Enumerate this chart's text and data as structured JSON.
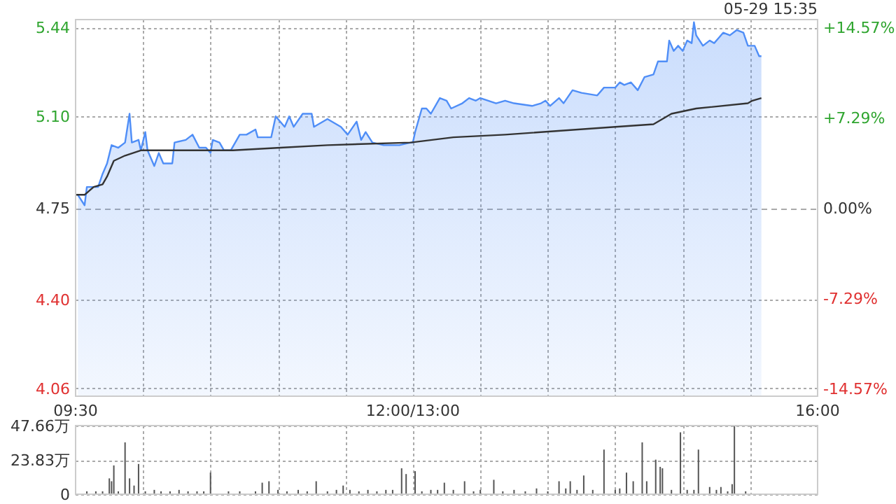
{
  "chart_data": [
    {
      "type": "area",
      "annotations": [
        "05-29 15:35"
      ],
      "categories": [
        "09:30",
        null,
        null,
        null,
        null,
        null,
        null,
        null,
        null,
        null,
        null,
        null,
        null,
        null,
        null,
        null,
        null,
        null,
        null,
        null,
        null,
        null,
        null,
        null,
        null,
        null,
        null,
        null,
        null,
        null,
        null,
        null,
        null,
        null,
        null,
        null,
        null,
        null,
        null,
        null,
        null,
        null,
        null,
        null,
        null,
        null,
        null,
        null,
        null,
        null,
        null,
        null,
        null,
        null,
        null,
        null,
        null,
        null,
        null,
        null,
        null,
        null,
        null,
        null,
        null,
        null,
        null,
        null,
        null,
        null,
        null,
        null,
        null,
        null,
        null,
        null,
        null,
        null,
        null,
        null,
        null,
        null,
        null,
        null,
        null,
        null,
        null,
        null,
        null,
        null,
        null,
        null,
        null,
        null,
        null,
        null,
        null,
        null,
        null,
        null,
        null,
        null,
        null,
        null,
        null,
        null,
        null,
        null,
        null,
        null,
        null,
        null,
        null,
        null,
        null,
        null,
        null,
        null,
        null,
        null,
        null,
        null,
        null,
        null,
        null,
        null,
        null,
        null,
        null,
        null,
        null,
        null,
        null,
        null,
        null,
        null,
        null,
        null,
        null,
        null,
        null,
        null,
        null,
        null,
        null,
        null,
        null,
        null,
        null,
        null,
        "12:00/13:00",
        null,
        null,
        null,
        null,
        null,
        null,
        null,
        null,
        null,
        null,
        null,
        null,
        null,
        null,
        null,
        null,
        null,
        null,
        null,
        null,
        null,
        null,
        null,
        null,
        null,
        null,
        null,
        null,
        null,
        null,
        null,
        null,
        null,
        null,
        null,
        null,
        null,
        null,
        null,
        null,
        null,
        null,
        null,
        null,
        null,
        null,
        null,
        null,
        null,
        null,
        null,
        null,
        null,
        null,
        null,
        null,
        null,
        null,
        null,
        null,
        null,
        null,
        null,
        null,
        null,
        null,
        null,
        null,
        null,
        null,
        null,
        null,
        null,
        null,
        null,
        null,
        null,
        null,
        null,
        null,
        null,
        null,
        null,
        null,
        null,
        null,
        null,
        null,
        null,
        null,
        null,
        null,
        null,
        null,
        null,
        null,
        null,
        null,
        null,
        null,
        null,
        null,
        null,
        null,
        null,
        null,
        null,
        null,
        null,
        null,
        null,
        null,
        null,
        null,
        null,
        null,
        null,
        null,
        null,
        null,
        null,
        null,
        null,
        null,
        null,
        null,
        null,
        null,
        null,
        null,
        null,
        null,
        null,
        null,
        null,
        null,
        null,
        null,
        null,
        null,
        null,
        null,
        null,
        null,
        null,
        null,
        null,
        null,
        null,
        null,
        null,
        null,
        null,
        null,
        null,
        null,
        null,
        null,
        null,
        null,
        null,
        null,
        null,
        null,
        null,
        null,
        null,
        null,
        null,
        null,
        null,
        null,
        null,
        null,
        null,
        null,
        null,
        null,
        null,
        "16:00"
      ],
      "ylim": [
        4.03,
        5.47
      ],
      "yticks": [
        {
          "value": 5.44,
          "label": "5.44"
        },
        {
          "value": 5.1,
          "label": "5.10"
        },
        {
          "value": 4.75,
          "label": "4.75"
        },
        {
          "value": 4.4,
          "label": "4.40"
        },
        {
          "value": 4.06,
          "label": "4.06"
        }
      ],
      "y2lim": [
        -15.2,
        15.2
      ],
      "y2ticks": [
        {
          "value": 14.57,
          "label": "+14.57%"
        },
        {
          "value": 7.29,
          "label": "+7.29%"
        },
        {
          "value": 0,
          "label": "0.00%"
        },
        {
          "value": -7.29,
          "label": "-7.29%"
        },
        {
          "value": -14.57,
          "label": "-14.57%"
        }
      ],
      "grid": true,
      "series": [
        {
          "color": "#4f8ef7",
          "values": [
            null,
            4.8,
            null,
            null,
            4.76,
            4.83,
            null,
            null,
            null,
            null,
            4.83,
            null,
            4.88,
            null,
            4.92,
            null,
            4.99,
            null,
            null,
            4.98,
            null,
            null,
            5.0,
            null,
            5.11,
            5.0,
            null,
            null,
            5.01,
            4.97,
            null,
            5.04,
            4.97,
            null,
            null,
            4.91,
            null,
            4.96,
            null,
            4.92,
            null,
            null,
            null,
            4.92,
            5.0,
            null,
            null,
            null,
            null,
            5.01,
            null,
            null,
            5.03,
            null,
            null,
            4.98,
            null,
            null,
            4.98,
            null,
            4.96,
            5.01,
            null,
            null,
            5.0,
            null,
            4.97,
            null,
            null,
            4.97,
            null,
            null,
            null,
            5.03,
            null,
            null,
            5.03,
            null,
            null,
            null,
            5.05,
            5.02,
            null,
            null,
            null,
            null,
            null,
            5.02,
            null,
            5.1,
            null,
            null,
            null,
            5.06,
            null,
            5.1,
            null,
            5.06,
            null,
            null,
            null,
            5.11,
            null,
            null,
            null,
            5.11,
            5.06,
            null,
            null,
            null,
            null,
            null,
            5.09,
            null,
            null,
            null,
            null,
            null,
            5.06,
            null,
            null,
            5.03,
            null,
            null,
            null,
            5.08,
            null,
            5.01,
            null,
            5.04,
            null,
            null,
            5.0,
            null,
            null,
            null,
            null,
            4.99,
            null,
            null,
            null,
            null,
            null,
            null,
            4.99,
            null,
            null,
            null,
            null,
            5.0,
            5.0,
            5.04,
            null,
            null,
            5.13,
            null,
            5.13,
            null,
            5.11,
            null,
            null,
            null,
            5.17,
            null,
            null,
            5.16,
            null,
            5.13,
            null,
            null,
            null,
            null,
            5.15,
            null,
            null,
            5.17,
            null,
            null,
            5.16,
            null,
            5.17,
            null,
            null,
            null,
            null,
            null,
            null,
            5.15,
            null,
            null,
            null,
            5.16,
            null,
            null,
            null,
            5.15,
            null,
            null,
            null,
            null,
            null,
            null,
            null,
            5.14,
            null,
            null,
            null,
            5.15,
            null,
            5.16,
            null,
            5.14,
            null,
            null,
            null,
            5.17,
            null,
            5.15,
            null,
            null,
            null,
            5.2,
            null,
            null,
            null,
            5.19,
            null,
            null,
            null,
            null,
            null,
            null,
            5.18,
            null,
            null,
            5.21,
            null,
            null,
            null,
            null,
            5.21,
            null,
            5.23,
            null,
            5.22,
            null,
            null,
            5.23,
            null,
            null,
            5.2,
            null,
            null,
            5.25,
            null,
            null,
            null,
            5.26,
            null,
            5.31,
            null,
            null,
            null,
            5.31,
            5.39,
            null,
            5.35,
            null,
            5.37,
            null,
            5.35,
            null,
            5.39,
            null,
            5.38,
            5.46,
            5.41,
            null,
            null,
            5.37,
            null,
            null,
            5.39,
            null,
            5.38,
            null,
            5.4,
            null,
            5.42,
            null,
            null,
            5.41,
            null,
            null,
            5.43,
            null,
            null,
            5.42,
            null,
            5.37,
            null,
            null,
            5.37,
            null,
            5.33,
            5.33,
            null,
            null,
            null,
            null,
            null,
            null,
            null,
            null,
            null,
            null,
            null,
            null,
            null,
            null,
            null,
            null,
            null,
            null,
            null,
            null,
            null,
            null,
            null,
            null,
            null
          ]
        },
        {
          "type": "line",
          "color": "#333333",
          "values": [
            4.8,
            null,
            null,
            null,
            4.8,
            null,
            null,
            null,
            4.83,
            null,
            null,
            null,
            4.84,
            null,
            4.87,
            null,
            null,
            4.93,
            null,
            null,
            null,
            null,
            4.95,
            null,
            null,
            null,
            null,
            null,
            null,
            4.97,
            null,
            null,
            null,
            null,
            null,
            null,
            null,
            null,
            null,
            null,
            null,
            null,
            null,
            4.97,
            null,
            null,
            null,
            null,
            null,
            null,
            null,
            null,
            null,
            null,
            null,
            null,
            null,
            null,
            null,
            null,
            null,
            null,
            null,
            null,
            null,
            null,
            null,
            null,
            null,
            null,
            4.97,
            null,
            null,
            null,
            null,
            null,
            null,
            null,
            null,
            null,
            null,
            null,
            null,
            null,
            null,
            null,
            null,
            null,
            null,
            null,
            null,
            4.98,
            null,
            null,
            null,
            null,
            null,
            null,
            null,
            null,
            null,
            null,
            null,
            null,
            null,
            null,
            null,
            null,
            null,
            null,
            null,
            null,
            4.99,
            null,
            null,
            null,
            null,
            null,
            null,
            null,
            null,
            null,
            null,
            null,
            null,
            null,
            null,
            null,
            null,
            null,
            null,
            null,
            null,
            null,
            null,
            null,
            null,
            null,
            null,
            null,
            null,
            null,
            null,
            null,
            null,
            null,
            null,
            null,
            null,
            5.0,
            null,
            null,
            null,
            null,
            null,
            null,
            null,
            null,
            null,
            null,
            null,
            null,
            null,
            null,
            null,
            null,
            null,
            null,
            5.02,
            null,
            null,
            null,
            null,
            null,
            null,
            null,
            null,
            null,
            null,
            null,
            null,
            null,
            null,
            null,
            null,
            null,
            null,
            null,
            null,
            null,
            null,
            5.03,
            null,
            null,
            null,
            null,
            null,
            null,
            null,
            null,
            null,
            null,
            null,
            null,
            null,
            null,
            null,
            null,
            null,
            null,
            null,
            null,
            null,
            null,
            null,
            null,
            null,
            null,
            null,
            null,
            null,
            null,
            null,
            null,
            null,
            null,
            null,
            null,
            null,
            null,
            null,
            null,
            null,
            null,
            null,
            null,
            null,
            null,
            null,
            null,
            5.06,
            null,
            null,
            null,
            null,
            null,
            null,
            null,
            null,
            null,
            null,
            null,
            null,
            null,
            null,
            null,
            null,
            5.07,
            null,
            null,
            null,
            null,
            null,
            null,
            null,
            5.11,
            null,
            null,
            null,
            null,
            null,
            null,
            null,
            null,
            null,
            null,
            5.13,
            null,
            null,
            null,
            null,
            null,
            null,
            null,
            null,
            null,
            null,
            null,
            null,
            null,
            null,
            null,
            null,
            null,
            null,
            null,
            null,
            null,
            null,
            5.15,
            null,
            5.16,
            null,
            null,
            null,
            5.17,
            null,
            null,
            null,
            null,
            null,
            null,
            null,
            null,
            null,
            null,
            null,
            null,
            null,
            null,
            null,
            null,
            null,
            null,
            null,
            null,
            null,
            null,
            null,
            null,
            null
          ]
        }
      ]
    },
    {
      "type": "bar",
      "color": "#555555",
      "tick_labels": "y",
      "grid": true,
      "categories": [
        null,
        null,
        null,
        null,
        null,
        null,
        null,
        null,
        null,
        null,
        null,
        null,
        null,
        null,
        null,
        null,
        null,
        null,
        null,
        null,
        null,
        null,
        null,
        null,
        null,
        null,
        null,
        null,
        null,
        null,
        null,
        null,
        null,
        null,
        null,
        null,
        null,
        null,
        null,
        null,
        null,
        null,
        null,
        null,
        null,
        null,
        null,
        null,
        null,
        null,
        null,
        null,
        null,
        null,
        null,
        null,
        null,
        null,
        null,
        null,
        null,
        null,
        null,
        null,
        null,
        null,
        null,
        null,
        null,
        null,
        null,
        null,
        null,
        null,
        null,
        null,
        null,
        null,
        null,
        null,
        null,
        null,
        null,
        null,
        null,
        null,
        null,
        null,
        null,
        null,
        null,
        null,
        null,
        null,
        null,
        null,
        null,
        null,
        null,
        null,
        null,
        null,
        null,
        null,
        null,
        null,
        null,
        null,
        null,
        null,
        null,
        null,
        null,
        null,
        null,
        null,
        null,
        null,
        null,
        null,
        null,
        null,
        null,
        null,
        null,
        null,
        null,
        null,
        null,
        null,
        null,
        null,
        null,
        null,
        null,
        null,
        null,
        null,
        null,
        null,
        null,
        null,
        null,
        null,
        null,
        null,
        null,
        null,
        null,
        null,
        null,
        null,
        null,
        null,
        null,
        null,
        null,
        null,
        null,
        null,
        null,
        null,
        null,
        null,
        null,
        null,
        null,
        null,
        null,
        null,
        null,
        null,
        null,
        null,
        null,
        null,
        null,
        null,
        null,
        null,
        null,
        null,
        null,
        null,
        null,
        null,
        null,
        null,
        null,
        null,
        null,
        null,
        null,
        null,
        null,
        null,
        null,
        null,
        null,
        null,
        null,
        null,
        null,
        null,
        null,
        null,
        null,
        null,
        null,
        null,
        null,
        null,
        null,
        null,
        null,
        null,
        null,
        null,
        null,
        null,
        null,
        null,
        null,
        null,
        null,
        null,
        null,
        null,
        null,
        null,
        null,
        null,
        null,
        null,
        null,
        null,
        null,
        null,
        null,
        null,
        null,
        null,
        null,
        null,
        null,
        null,
        null,
        null,
        null,
        null,
        null,
        null,
        null,
        null,
        null,
        null,
        null,
        null,
        null,
        null,
        null,
        null,
        null,
        null,
        null,
        null,
        null,
        null,
        null,
        null,
        null,
        null,
        null,
        null,
        null,
        null,
        null,
        null,
        null,
        null,
        null,
        null,
        null,
        null,
        null,
        null,
        null,
        null,
        null,
        null,
        null,
        null,
        null,
        null,
        null,
        null,
        null,
        null,
        null,
        null,
        null,
        null,
        null,
        null,
        null,
        null,
        null,
        null,
        null,
        null,
        null,
        null,
        null,
        null,
        null,
        null,
        null,
        null,
        null,
        null,
        null,
        null,
        null,
        null,
        null,
        null,
        null,
        null,
        null,
        null,
        null
      ],
      "ylim": [
        0,
        47.66
      ],
      "yticks": [
        {
          "value": 0,
          "label": "0"
        },
        {
          "value": 23.83,
          "label": "23.83万"
        },
        {
          "value": 47.66,
          "label": "47.66万"
        }
      ],
      "values": [
        null,
        null,
        null,
        null,
        null,
        2,
        null,
        null,
        null,
        2,
        null,
        null,
        2,
        null,
        null,
        11,
        9,
        20,
        null,
        2,
        null,
        null,
        36,
        null,
        11,
        null,
        6,
        null,
        21,
        null,
        null,
        2,
        null,
        null,
        null,
        3,
        null,
        null,
        2,
        null,
        null,
        null,
        2,
        null,
        null,
        null,
        3,
        null,
        null,
        null,
        2,
        null,
        null,
        null,
        2,
        null,
        null,
        2,
        null,
        null,
        15,
        null,
        null,
        null,
        null,
        null,
        null,
        null,
        2,
        null,
        null,
        null,
        null,
        2,
        null,
        null,
        null,
        null,
        null,
        null,
        2,
        null,
        null,
        8,
        null,
        null,
        9,
        null,
        null,
        null,
        3,
        null,
        null,
        null,
        2,
        null,
        null,
        null,
        null,
        3,
        null,
        null,
        null,
        2,
        null,
        null,
        null,
        9,
        null,
        null,
        null,
        null,
        2,
        null,
        null,
        null,
        3,
        null,
        null,
        6,
        null,
        null,
        3,
        null,
        null,
        null,
        2,
        null,
        null,
        null,
        3,
        null,
        null,
        null,
        2,
        null,
        null,
        null,
        3,
        null,
        null,
        3,
        null,
        null,
        null,
        18,
        null,
        14,
        null,
        null,
        null,
        16,
        null,
        null,
        2,
        null,
        null,
        null,
        3,
        null,
        null,
        3,
        null,
        null,
        8,
        null,
        null,
        null,
        3,
        null,
        null,
        null,
        null,
        9,
        null,
        null,
        null,
        2,
        null,
        null,
        3,
        null,
        null,
        null,
        null,
        null,
        10,
        null,
        null,
        null,
        2,
        null,
        null,
        null,
        null,
        3,
        null,
        null,
        null,
        null,
        2,
        null,
        null,
        null,
        null,
        4,
        null,
        null,
        null,
        null,
        2,
        null,
        null,
        null,
        null,
        9,
        null,
        null,
        4,
        null,
        9,
        null,
        null,
        3,
        null,
        null,
        13,
        null,
        null,
        null,
        3,
        null,
        null,
        null,
        null,
        31,
        null,
        null,
        null,
        null,
        3,
        null,
        4,
        null,
        null,
        15,
        null,
        null,
        9,
        null,
        null,
        null,
        36,
        null,
        9,
        null,
        null,
        null,
        24,
        null,
        19,
        18,
        null,
        null,
        null,
        3,
        null,
        null,
        null,
        43,
        null,
        null,
        3,
        null,
        null,
        3,
        null,
        31,
        null,
        null,
        null,
        null,
        5,
        null,
        null,
        3,
        null,
        5,
        null,
        null,
        2,
        null,
        7,
        47.66,
        null,
        null,
        null,
        null,
        2,
        null,
        null,
        null,
        null,
        null,
        null,
        null,
        null,
        null,
        null,
        null,
        null,
        null,
        null,
        null,
        null,
        null,
        null,
        null,
        null,
        null,
        null,
        null,
        null,
        null,
        null,
        null,
        null,
        null,
        null,
        null,
        null
      ]
    }
  ]
}
